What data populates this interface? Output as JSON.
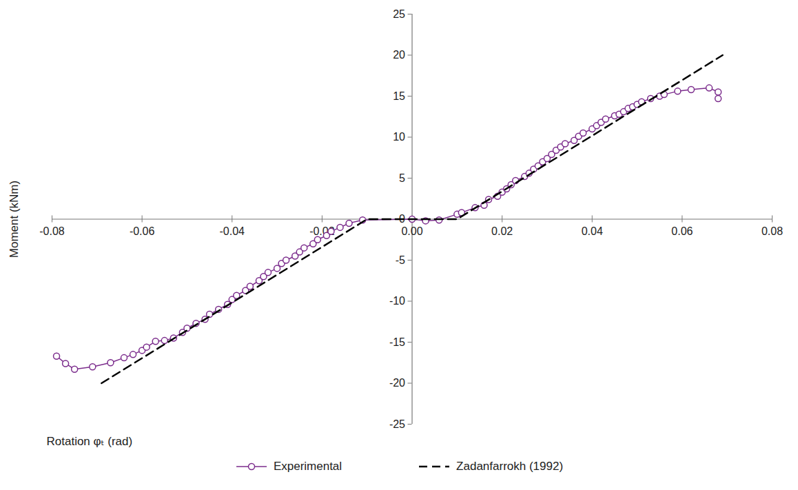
{
  "chart_data": {
    "type": "line",
    "x_label": "Rotation φₜ (rad)",
    "y_label": "Moment (kNm)",
    "xlim": [
      -0.08,
      0.08
    ],
    "xticks": [
      -0.08,
      -0.06,
      -0.04,
      -0.02,
      {
        "value": 0,
        "label": "0.00"
      },
      0.02,
      0.04,
      0.06,
      0.08
    ],
    "ylim": [
      -25,
      25
    ],
    "yticks": [
      -25,
      -20,
      -15,
      -10,
      -5,
      0,
      5,
      10,
      15,
      20,
      25
    ],
    "grid": false,
    "legend": "bottom",
    "series": [
      {
        "name": "Experimental",
        "color": "#7b2c8c",
        "marker": "circle",
        "line_style": "solid",
        "x": [
          -0.079,
          -0.077,
          -0.075,
          -0.071,
          -0.067,
          -0.064,
          -0.062,
          -0.06,
          -0.059,
          -0.057,
          -0.055,
          -0.053,
          -0.051,
          -0.05,
          -0.048,
          -0.046,
          -0.045,
          -0.043,
          -0.041,
          -0.04,
          -0.039,
          -0.037,
          -0.036,
          -0.034,
          -0.033,
          -0.032,
          -0.03,
          -0.029,
          -0.028,
          -0.026,
          -0.025,
          -0.024,
          -0.022,
          -0.021,
          -0.019,
          -0.018,
          -0.016,
          -0.014,
          -0.011,
          0.0,
          0.003,
          0.006,
          0.01,
          0.011,
          0.014,
          0.016,
          0.017,
          0.019,
          0.02,
          0.021,
          0.022,
          0.023,
          0.025,
          0.026,
          0.027,
          0.028,
          0.029,
          0.03,
          0.031,
          0.032,
          0.033,
          0.034,
          0.036,
          0.037,
          0.038,
          0.04,
          0.041,
          0.042,
          0.043,
          0.045,
          0.046,
          0.047,
          0.048,
          0.049,
          0.05,
          0.051,
          0.053,
          0.055,
          0.056,
          0.059,
          0.062,
          0.066,
          0.068,
          0.068
        ],
        "values": [
          -16.7,
          -17.6,
          -18.3,
          -18.0,
          -17.5,
          -16.9,
          -16.5,
          -16.0,
          -15.6,
          -14.9,
          -14.8,
          -14.5,
          -13.8,
          -13.3,
          -12.7,
          -12.2,
          -11.6,
          -11.0,
          -10.4,
          -9.8,
          -9.3,
          -8.7,
          -8.2,
          -7.5,
          -7.0,
          -6.5,
          -6.0,
          -5.4,
          -5.0,
          -4.5,
          -4.0,
          -3.5,
          -3.0,
          -2.5,
          -2.0,
          -1.5,
          -1.0,
          -0.5,
          -0.1,
          0.0,
          -0.2,
          -0.1,
          0.6,
          0.8,
          1.4,
          1.7,
          2.4,
          2.8,
          3.3,
          3.7,
          4.2,
          4.7,
          5.2,
          5.6,
          6.1,
          6.5,
          7.0,
          7.4,
          7.9,
          8.4,
          8.8,
          9.2,
          9.6,
          10.1,
          10.5,
          11.0,
          11.4,
          11.8,
          12.2,
          12.6,
          12.8,
          13.1,
          13.5,
          13.7,
          14.0,
          14.3,
          14.7,
          15.0,
          15.2,
          15.6,
          15.8,
          16.0,
          15.5,
          14.7
        ]
      },
      {
        "name": "Zadanfarrokh (1992)",
        "color": "#000000",
        "marker": "none",
        "line_style": "dashed",
        "x": [
          -0.069,
          -0.01,
          0.01,
          0.069
        ],
        "values": [
          -20,
          0,
          0,
          20
        ]
      }
    ]
  }
}
